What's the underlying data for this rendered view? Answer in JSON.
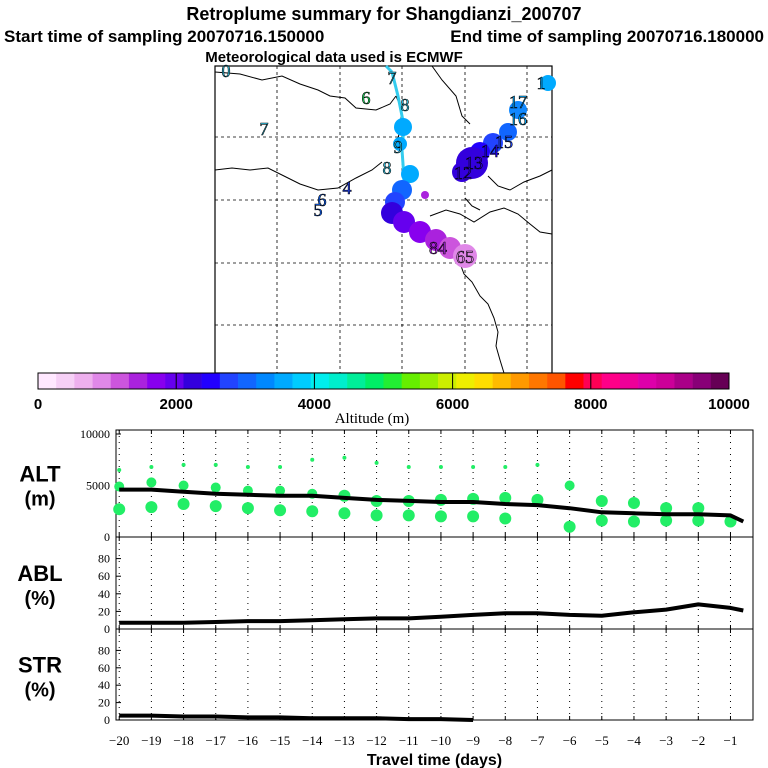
{
  "header": {
    "title": "Retroplume summary for Shangdianzi_200707",
    "start_label": "Start time of sampling 20070716.150000",
    "end_label": "End time of sampling 20070716.180000",
    "met_label": "Meteorological data used is ECMWF"
  },
  "colors": {
    "ink": "#000000",
    "line": "#000000",
    "scatter": "#22ee66",
    "track": "#33ccee"
  },
  "colorbar": {
    "title": "Altitude (m)",
    "ticks": [
      "0",
      "2000",
      "4000",
      "6000",
      "8000",
      "10000"
    ],
    "colors": [
      "#ffe8ff",
      "#f6d0f6",
      "#eeb0ee",
      "#e088e8",
      "#cc55dd",
      "#aa22dd",
      "#8800ee",
      "#6600ee",
      "#3300dd",
      "#2200ff",
      "#2244ff",
      "#1166ff",
      "#0088ff",
      "#00aaff",
      "#00ccff",
      "#00eeee",
      "#00eecc",
      "#00ee99",
      "#00ee66",
      "#22ee33",
      "#66ee00",
      "#99ee00",
      "#ccee00",
      "#eeee00",
      "#ffdd00",
      "#ffbb00",
      "#ff9900",
      "#ff7700",
      "#ff5500",
      "#ff0000",
      "#ff0055",
      "#ff0088",
      "#ee0099",
      "#dd00aa",
      "#cc0099",
      "#aa0088",
      "#880077",
      "#660055"
    ]
  },
  "map": {
    "labels": [
      {
        "text": "0",
        "color": "#33ccee"
      },
      {
        "text": "7",
        "color": "#33ccee"
      },
      {
        "text": "6",
        "color": "#22ee66"
      },
      {
        "text": "7",
        "color": "#33ccee"
      },
      {
        "text": "8",
        "color": "#33ccee"
      },
      {
        "text": "4",
        "color": "#2244ff"
      },
      {
        "text": "6",
        "color": "#1166ff"
      },
      {
        "text": "5",
        "color": "#1166ff"
      },
      {
        "text": "8",
        "color": "#33ccee"
      },
      {
        "text": "9",
        "color": "#33ccee"
      },
      {
        "text": "1",
        "color": "#00aaff"
      },
      {
        "text": "17",
        "color": "#00aaff"
      },
      {
        "text": "16",
        "color": "#00aaff"
      },
      {
        "text": "15",
        "color": "#2244ff"
      },
      {
        "text": "14",
        "color": "#2200ff"
      },
      {
        "text": "13",
        "color": "#3300dd"
      },
      {
        "text": "12",
        "color": "#3300dd"
      },
      {
        "text": "84",
        "color": "#aa22dd"
      },
      {
        "text": "65",
        "color": "#e088e8"
      }
    ]
  },
  "chart_data": [
    {
      "type": "line",
      "panel": "ALT",
      "ylabel": "ALT",
      "yunit": "(m)",
      "ylim": [
        0,
        10000
      ],
      "yticks": [
        "0",
        "5000",
        "10000"
      ],
      "x": [
        -20,
        -19,
        -18,
        -17,
        -16,
        -15,
        -14,
        -13,
        -12,
        -11,
        -10,
        -9,
        -8,
        -7,
        -6,
        -5,
        -4,
        -3,
        -2,
        -1,
        -0.6
      ],
      "series": [
        {
          "name": "median altitude",
          "values": [
            4600,
            4600,
            4400,
            4200,
            4100,
            4000,
            4000,
            3800,
            3600,
            3500,
            3400,
            3400,
            3200,
            3100,
            2800,
            2400,
            2300,
            2200,
            2200,
            2100,
            1500
          ]
        }
      ],
      "scatter": {
        "x": [
          -20,
          -20,
          -20,
          -19,
          -19,
          -19,
          -18,
          -18,
          -18,
          -17,
          -17,
          -17,
          -16,
          -16,
          -16,
          -15,
          -15,
          -15,
          -14,
          -14,
          -14,
          -13,
          -13,
          -13,
          -12,
          -12,
          -12,
          -11,
          -11,
          -11,
          -10,
          -10,
          -10,
          -9,
          -9,
          -9,
          -8,
          -8,
          -8,
          -7,
          -7,
          -6,
          -6,
          -5,
          -5,
          -4,
          -4,
          -3,
          -3,
          -2,
          -2,
          -1
        ],
        "y": [
          6500,
          4900,
          2700,
          6800,
          5300,
          2900,
          7000,
          5000,
          3200,
          7000,
          4800,
          3000,
          6800,
          4500,
          2800,
          6800,
          4500,
          2600,
          7500,
          4200,
          2500,
          7700,
          4000,
          2300,
          7200,
          3500,
          2100,
          6800,
          3500,
          2100,
          6800,
          3600,
          2000,
          6800,
          3700,
          2000,
          6800,
          3800,
          1800,
          7000,
          3600,
          5000,
          1000,
          3500,
          1600,
          3300,
          1500,
          2800,
          1600,
          2800,
          1600,
          1500
        ]
      },
      "xlim": [
        -20.1,
        -0.3
      ]
    },
    {
      "type": "line",
      "panel": "ABL",
      "ylabel": "ABL",
      "yunit": "(%)",
      "ylim": [
        0,
        100
      ],
      "yticks": [
        "0",
        "20",
        "40",
        "60",
        "80"
      ],
      "x": [
        -20,
        -19,
        -18,
        -17,
        -16,
        -15,
        -14,
        -13,
        -12,
        -11,
        -10,
        -9,
        -8,
        -7,
        -6,
        -5,
        -4,
        -3,
        -2,
        -1,
        -0.6
      ],
      "series": [
        {
          "name": "ABL fraction",
          "values": [
            7,
            7,
            7,
            8,
            9,
            9,
            10,
            11,
            12,
            12,
            14,
            16,
            18,
            18,
            16,
            15,
            19,
            22,
            28,
            24,
            21
          ]
        }
      ],
      "xlim": [
        -20.1,
        -0.3
      ]
    },
    {
      "type": "line",
      "panel": "STR",
      "ylabel": "STR",
      "yunit": "(%)",
      "ylim": [
        0,
        100
      ],
      "yticks": [
        "0",
        "20",
        "40",
        "60",
        "80"
      ],
      "x": [
        -20,
        -19,
        -18,
        -17,
        -16,
        -15,
        -14,
        -13,
        -12,
        -11,
        -10,
        -9
      ],
      "series": [
        {
          "name": "stratospheric fraction",
          "values": [
            5,
            5,
            4,
            4,
            3,
            3,
            2,
            2,
            2,
            1,
            1,
            0
          ]
        }
      ],
      "xlabel": "Travel time (days)",
      "xticks": [
        "−20",
        "−19",
        "−18",
        "−17",
        "−16",
        "−15",
        "−14",
        "−13",
        "−12",
        "−11",
        "−10",
        "−9",
        "−8",
        "−7",
        "−6",
        "−5",
        "−4",
        "−3",
        "−2",
        "−1"
      ],
      "xlim": [
        -20.1,
        -0.3
      ]
    }
  ]
}
